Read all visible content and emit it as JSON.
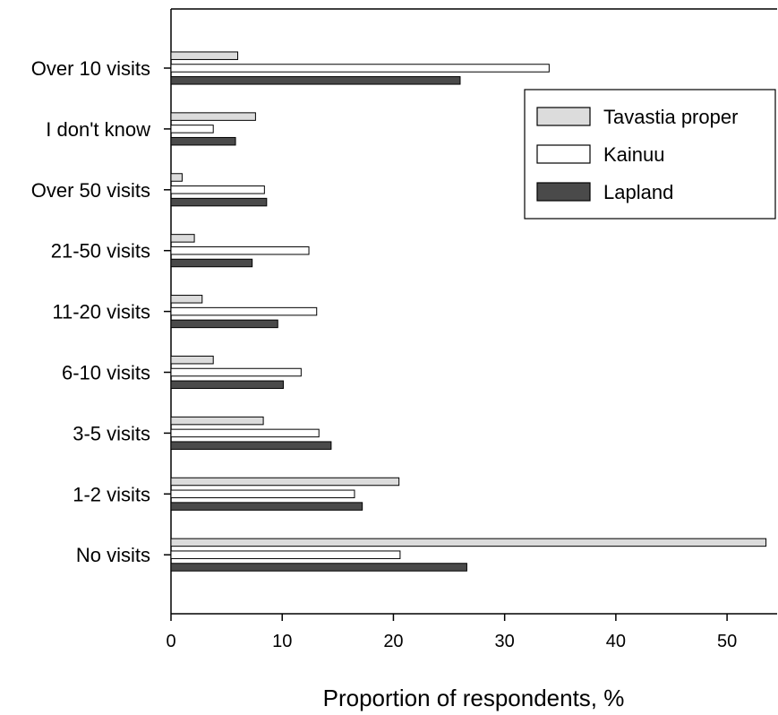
{
  "chart_data": {
    "type": "bar",
    "orientation": "horizontal",
    "title": "",
    "xlabel": "Proportion of respondents, %",
    "ylabel": "",
    "xlim": [
      0,
      54.5
    ],
    "xticks": [
      "0",
      "10",
      "20",
      "30",
      "40",
      "50"
    ],
    "categories": [
      "Over 10 visits",
      "I don't know",
      "Over 50 visits",
      "21-50 visits",
      "11-20 visits",
      "6-10 visits",
      "3-5 visits",
      "1-2 visits",
      "No visits"
    ],
    "series": [
      {
        "name": "Tavastia proper",
        "color": "#dcdcdc",
        "values": [
          6,
          7.6,
          1,
          2.1,
          2.8,
          3.8,
          8.3,
          20.5,
          53.5
        ]
      },
      {
        "name": "Kainuu",
        "color": "#ffffff",
        "values": [
          34,
          3.8,
          8.4,
          12.4,
          13.1,
          11.7,
          13.3,
          16.5,
          20.6
        ]
      },
      {
        "name": "Lapland",
        "color": "#4a4a4a",
        "values": [
          26,
          5.8,
          8.6,
          7.3,
          9.6,
          10.1,
          14.4,
          17.2,
          26.6
        ]
      }
    ],
    "legend_position": "top-right",
    "grid": false
  }
}
